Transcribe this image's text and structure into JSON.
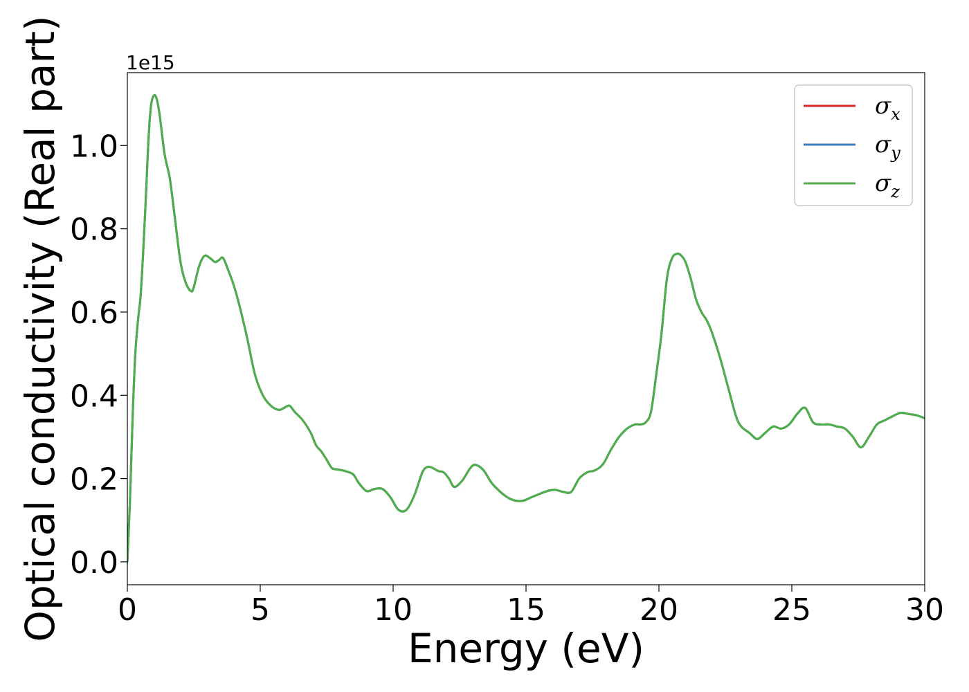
{
  "chart_data": {
    "type": "line",
    "title": "",
    "xlabel": "Energy (eV)",
    "ylabel": "Optical conductivity (Real part)",
    "y_scale_label": "1e15",
    "xlim": [
      0,
      30
    ],
    "ylim": [
      -0.055,
      1.175
    ],
    "x_ticks": [
      0,
      5,
      10,
      15,
      20,
      25,
      30
    ],
    "x_tick_labels": [
      "0",
      "5",
      "10",
      "15",
      "20",
      "25",
      "30"
    ],
    "y_ticks": [
      0.0,
      0.2,
      0.4,
      0.6,
      0.8,
      1.0
    ],
    "y_tick_labels": [
      "0.0",
      "0.2",
      "0.4",
      "0.6",
      "0.8",
      "1.0"
    ],
    "grid": false,
    "legend_position": "top-right",
    "x": [
      0,
      0.1,
      0.2,
      0.3,
      0.4,
      0.5,
      0.6,
      0.7,
      0.8,
      0.9,
      1.05,
      1.2,
      1.4,
      1.6,
      1.8,
      2.0,
      2.2,
      2.4,
      2.5,
      2.7,
      2.9,
      3.1,
      3.3,
      3.45,
      3.6,
      3.8,
      4.0,
      4.2,
      4.5,
      4.8,
      5.1,
      5.4,
      5.7,
      5.9,
      6.1,
      6.3,
      6.6,
      6.9,
      7.1,
      7.3,
      7.5,
      7.7,
      7.9,
      8.2,
      8.5,
      8.7,
      9.0,
      9.3,
      9.6,
      9.9,
      10.2,
      10.5,
      10.8,
      11.1,
      11.3,
      11.5,
      11.7,
      11.9,
      12.1,
      12.3,
      12.6,
      12.9,
      13.1,
      13.4,
      13.7,
      14.0,
      14.3,
      14.6,
      14.9,
      15.2,
      15.5,
      15.8,
      16.1,
      16.4,
      16.7,
      17.0,
      17.3,
      17.6,
      17.9,
      18.2,
      18.5,
      18.8,
      19.1,
      19.3,
      19.5,
      19.7,
      19.9,
      20.1,
      20.3,
      20.5,
      20.7,
      20.85,
      21.0,
      21.2,
      21.4,
      21.6,
      21.8,
      22.0,
      22.3,
      22.6,
      22.9,
      23.1,
      23.4,
      23.7,
      24.0,
      24.3,
      24.6,
      24.9,
      25.2,
      25.5,
      25.8,
      26.1,
      26.4,
      26.7,
      27.0,
      27.3,
      27.6,
      27.9,
      28.2,
      28.5,
      28.8,
      29.1,
      29.4,
      29.7,
      30.0
    ],
    "series": [
      {
        "name": "σx",
        "symbol": "σ",
        "subscript": "x",
        "color": "#d62728",
        "values": [
          0.0,
          0.15,
          0.35,
          0.5,
          0.58,
          0.64,
          0.75,
          0.88,
          1.02,
          1.1,
          1.12,
          1.08,
          0.98,
          0.92,
          0.82,
          0.72,
          0.67,
          0.65,
          0.66,
          0.71,
          0.735,
          0.73,
          0.72,
          0.725,
          0.73,
          0.7,
          0.665,
          0.62,
          0.54,
          0.45,
          0.4,
          0.375,
          0.365,
          0.37,
          0.375,
          0.36,
          0.34,
          0.31,
          0.28,
          0.265,
          0.245,
          0.225,
          0.222,
          0.218,
          0.21,
          0.19,
          0.17,
          0.175,
          0.175,
          0.155,
          0.125,
          0.125,
          0.16,
          0.215,
          0.228,
          0.225,
          0.218,
          0.215,
          0.2,
          0.18,
          0.195,
          0.225,
          0.233,
          0.22,
          0.19,
          0.17,
          0.155,
          0.147,
          0.147,
          0.155,
          0.163,
          0.17,
          0.173,
          0.168,
          0.168,
          0.2,
          0.215,
          0.22,
          0.235,
          0.27,
          0.3,
          0.32,
          0.33,
          0.33,
          0.335,
          0.36,
          0.45,
          0.55,
          0.68,
          0.73,
          0.74,
          0.735,
          0.72,
          0.68,
          0.63,
          0.6,
          0.58,
          0.55,
          0.49,
          0.42,
          0.35,
          0.325,
          0.31,
          0.295,
          0.31,
          0.325,
          0.32,
          0.33,
          0.355,
          0.37,
          0.335,
          0.33,
          0.33,
          0.325,
          0.32,
          0.3,
          0.275,
          0.3,
          0.33,
          0.34,
          0.35,
          0.358,
          0.355,
          0.352,
          0.345
        ]
      },
      {
        "name": "σy",
        "symbol": "σ",
        "subscript": "y",
        "color": "#3a7ebf",
        "values": [
          0.0,
          0.15,
          0.35,
          0.5,
          0.58,
          0.64,
          0.75,
          0.88,
          1.02,
          1.1,
          1.12,
          1.08,
          0.98,
          0.92,
          0.82,
          0.72,
          0.67,
          0.65,
          0.66,
          0.71,
          0.735,
          0.73,
          0.72,
          0.725,
          0.73,
          0.7,
          0.665,
          0.62,
          0.54,
          0.45,
          0.4,
          0.375,
          0.365,
          0.37,
          0.375,
          0.36,
          0.34,
          0.31,
          0.28,
          0.265,
          0.245,
          0.225,
          0.222,
          0.218,
          0.21,
          0.19,
          0.17,
          0.175,
          0.175,
          0.155,
          0.125,
          0.125,
          0.16,
          0.215,
          0.228,
          0.225,
          0.218,
          0.215,
          0.2,
          0.18,
          0.195,
          0.225,
          0.233,
          0.22,
          0.19,
          0.17,
          0.155,
          0.147,
          0.147,
          0.155,
          0.163,
          0.17,
          0.173,
          0.168,
          0.168,
          0.2,
          0.215,
          0.22,
          0.235,
          0.27,
          0.3,
          0.32,
          0.33,
          0.33,
          0.335,
          0.36,
          0.45,
          0.55,
          0.68,
          0.73,
          0.74,
          0.735,
          0.72,
          0.68,
          0.63,
          0.6,
          0.58,
          0.55,
          0.49,
          0.42,
          0.35,
          0.325,
          0.31,
          0.295,
          0.31,
          0.325,
          0.32,
          0.33,
          0.355,
          0.37,
          0.335,
          0.33,
          0.33,
          0.325,
          0.32,
          0.3,
          0.275,
          0.3,
          0.33,
          0.34,
          0.35,
          0.358,
          0.355,
          0.352,
          0.345
        ]
      },
      {
        "name": "σz",
        "symbol": "σ",
        "subscript": "z",
        "color": "#4daf4a",
        "values": [
          0.0,
          0.15,
          0.35,
          0.5,
          0.58,
          0.64,
          0.75,
          0.88,
          1.02,
          1.1,
          1.12,
          1.08,
          0.98,
          0.92,
          0.82,
          0.72,
          0.67,
          0.65,
          0.66,
          0.71,
          0.735,
          0.73,
          0.72,
          0.725,
          0.73,
          0.7,
          0.665,
          0.62,
          0.54,
          0.45,
          0.4,
          0.375,
          0.365,
          0.37,
          0.375,
          0.36,
          0.34,
          0.31,
          0.28,
          0.265,
          0.245,
          0.225,
          0.222,
          0.218,
          0.21,
          0.19,
          0.17,
          0.175,
          0.175,
          0.155,
          0.125,
          0.125,
          0.16,
          0.215,
          0.228,
          0.225,
          0.218,
          0.215,
          0.2,
          0.18,
          0.195,
          0.225,
          0.233,
          0.22,
          0.19,
          0.17,
          0.155,
          0.147,
          0.147,
          0.155,
          0.163,
          0.17,
          0.173,
          0.168,
          0.168,
          0.2,
          0.215,
          0.22,
          0.235,
          0.27,
          0.3,
          0.32,
          0.33,
          0.33,
          0.335,
          0.36,
          0.45,
          0.55,
          0.68,
          0.73,
          0.74,
          0.735,
          0.72,
          0.68,
          0.63,
          0.6,
          0.58,
          0.55,
          0.49,
          0.42,
          0.35,
          0.325,
          0.31,
          0.295,
          0.31,
          0.325,
          0.32,
          0.33,
          0.355,
          0.37,
          0.335,
          0.33,
          0.33,
          0.325,
          0.32,
          0.3,
          0.275,
          0.3,
          0.33,
          0.34,
          0.35,
          0.358,
          0.355,
          0.352,
          0.345
        ]
      }
    ]
  }
}
